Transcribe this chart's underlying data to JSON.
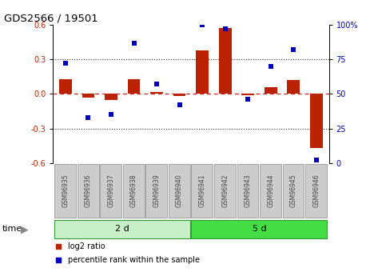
{
  "title": "GDS2566 / 19501",
  "samples": [
    "GSM96935",
    "GSM96936",
    "GSM96937",
    "GSM96938",
    "GSM96939",
    "GSM96940",
    "GSM96941",
    "GSM96942",
    "GSM96943",
    "GSM96944",
    "GSM96945",
    "GSM96946"
  ],
  "log2_ratio": [
    0.13,
    -0.03,
    -0.05,
    0.13,
    0.02,
    -0.02,
    0.38,
    0.57,
    -0.01,
    0.06,
    0.12,
    -0.47
  ],
  "percentile_rank": [
    72,
    33,
    35,
    87,
    57,
    42,
    100,
    97,
    46,
    70,
    82,
    2
  ],
  "groups": [
    {
      "label": "2 d",
      "start": 0,
      "end": 6,
      "color": "#c8f0c8"
    },
    {
      "label": "5 d",
      "start": 6,
      "end": 12,
      "color": "#44dd44"
    }
  ],
  "time_label": "time",
  "legend_items": [
    {
      "label": "log2 ratio",
      "color": "#bb2200"
    },
    {
      "label": "percentile rank within the sample",
      "color": "#0000bb"
    }
  ],
  "ylim_left": [
    -0.6,
    0.6
  ],
  "ylim_right": [
    0,
    100
  ],
  "yticks_left": [
    -0.6,
    -0.3,
    0.0,
    0.3,
    0.6
  ],
  "yticks_right": [
    0,
    25,
    50,
    75,
    100
  ],
  "ytick_labels_right": [
    "0",
    "25",
    "50",
    "75",
    "100%"
  ],
  "bar_color": "#bb2200",
  "dot_color": "#0000bb",
  "hline_color": "#cc2222",
  "dotted_line_color": "#333333",
  "bg_color": "#ffffff",
  "sample_box_color": "#cccccc",
  "sample_box_edge": "#999999",
  "sample_text_color": "#444444"
}
